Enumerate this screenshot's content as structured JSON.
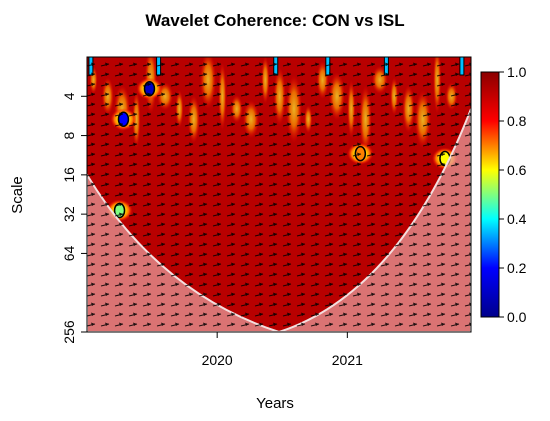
{
  "chart_data": {
    "type": "heatmap",
    "title": "Wavelet Coherence: CON vs ISL",
    "xlabel": "Years",
    "ylabel": "Scale",
    "x_tick_labels": [
      "2020",
      "2021"
    ],
    "x_tick_values": [
      2020,
      2021
    ],
    "x_range": [
      2019.0,
      2021.95
    ],
    "y_tick_labels": [
      "4",
      "8",
      "16",
      "32",
      "64",
      "256"
    ],
    "y_tick_values": [
      4,
      8,
      16,
      32,
      64,
      256
    ],
    "y_scale": "log2",
    "y_reversed": true,
    "y_range": [
      2,
      256
    ],
    "colorbar": {
      "min": 0.0,
      "max": 1.0,
      "tick_labels": [
        "0.0",
        "0.2",
        "0.4",
        "0.6",
        "0.8",
        "1.0"
      ],
      "tick_values": [
        0.0,
        0.2,
        0.4,
        0.6,
        0.8,
        1.0
      ],
      "colors": [
        "#00008b",
        "#0000ff",
        "#00ffff",
        "#ffff00",
        "#ff0000",
        "#8b0000"
      ]
    },
    "cone_of_influence": true,
    "phase_arrows": true,
    "dominant_coherence": 0.9,
    "notable_features": [
      {
        "x": 2019.25,
        "scale": 30,
        "coherence": 0.5
      },
      {
        "x": 2019.28,
        "scale": 6,
        "coherence": 0.2
      },
      {
        "x": 2019.48,
        "scale": 3.5,
        "coherence": 0.1
      },
      {
        "x": 2021.1,
        "scale": 11,
        "coherence": 0.7
      },
      {
        "x": 2021.75,
        "scale": 12,
        "coherence": 0.6
      }
    ]
  }
}
